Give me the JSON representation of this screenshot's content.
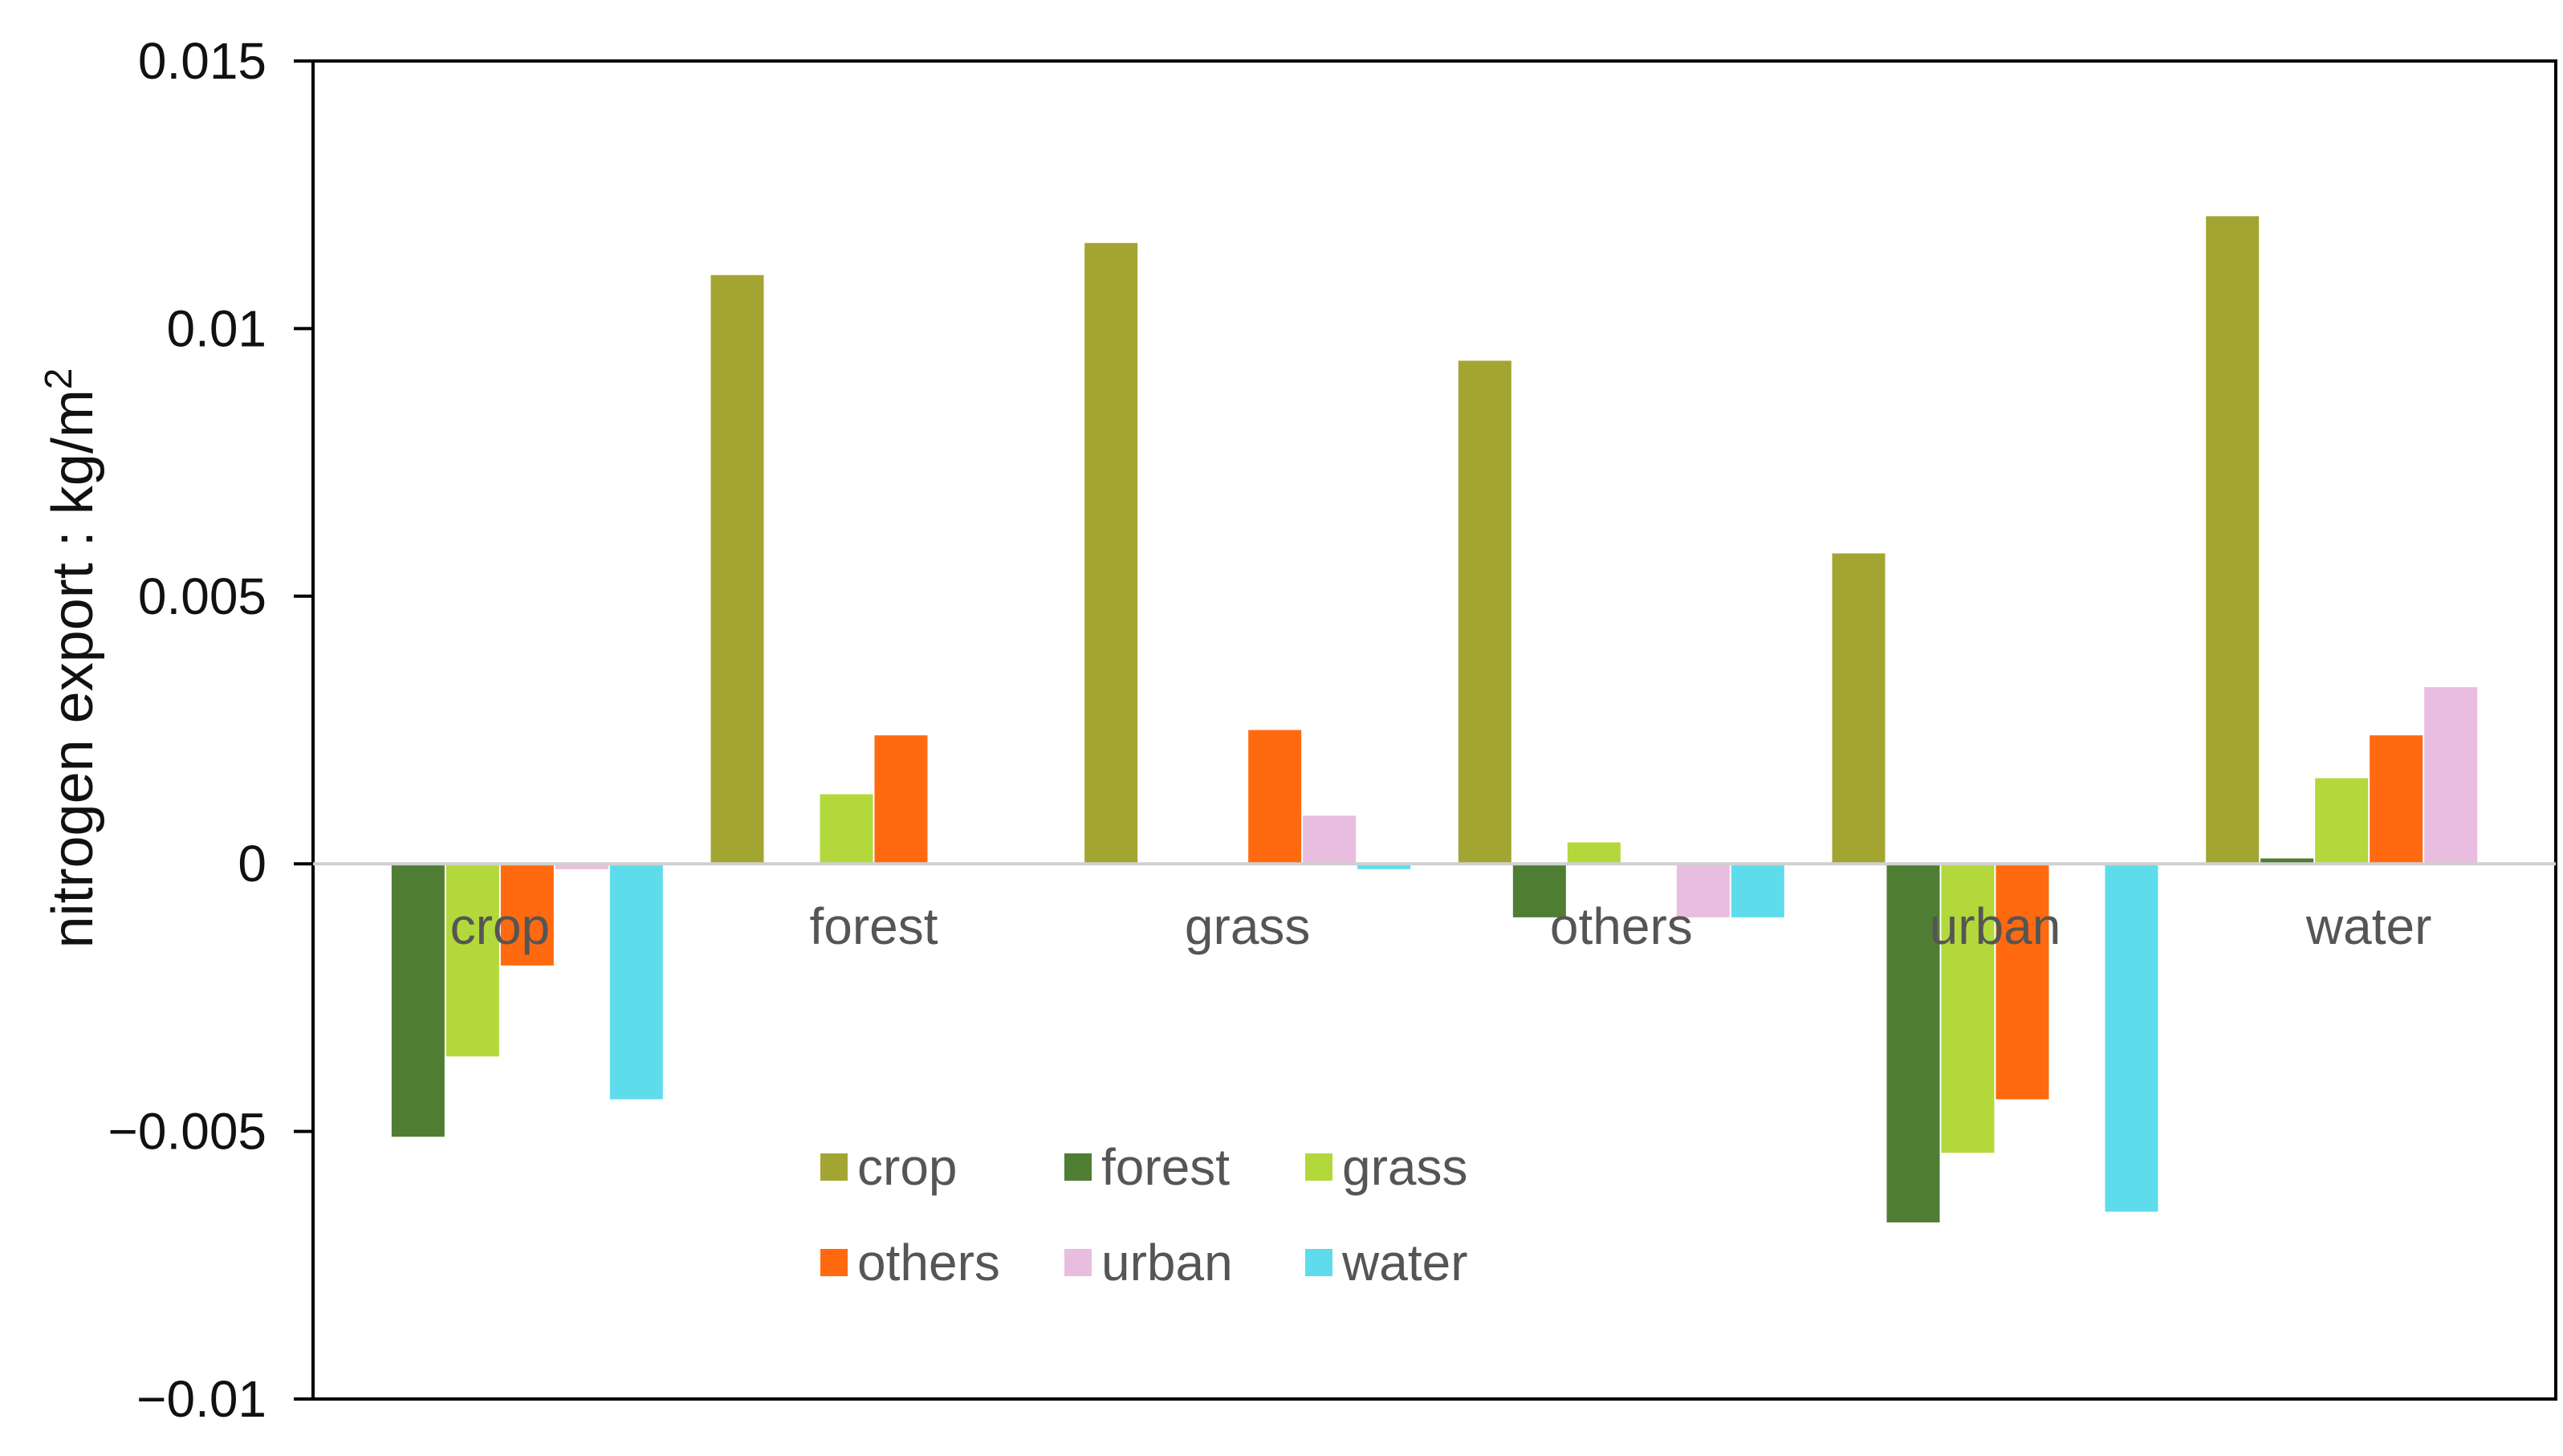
{
  "chart_data": {
    "type": "bar",
    "title": "",
    "xlabel": "",
    "ylabel": "nitrogen export : kg/m",
    "ylabel_superscript": "2",
    "ylim": [
      -0.01,
      0.015
    ],
    "yticks": [
      {
        "value": 0.015,
        "label": "0.015"
      },
      {
        "value": 0.01,
        "label": "0.01"
      },
      {
        "value": 0.005,
        "label": "0.005"
      },
      {
        "value": 0,
        "label": "0"
      },
      {
        "value": -0.005,
        "label": "−0.005"
      },
      {
        "value": -0.01,
        "label": "−0.01"
      }
    ],
    "categories": [
      "crop",
      "forest",
      "grass",
      "others",
      "urban",
      "water"
    ],
    "series": [
      {
        "name": "crop",
        "color": "#a3a532",
        "values": [
          0,
          0.011,
          0.0116,
          0.0094,
          0.0058,
          0.0121
        ]
      },
      {
        "name": "forest",
        "color": "#4f7d33",
        "values": [
          -0.0051,
          0,
          0,
          -0.001,
          -0.0067,
          0.0001
        ]
      },
      {
        "name": "grass",
        "color": "#b3d83b",
        "values": [
          -0.0036,
          0.0013,
          0,
          0.0004,
          -0.0054,
          0.0016
        ]
      },
      {
        "name": "others",
        "color": "#ff6a10",
        "values": [
          -0.0019,
          0.0024,
          0.0025,
          0,
          -0.0044,
          0.0024
        ]
      },
      {
        "name": "urban",
        "color": "#e9bde0",
        "values": [
          -0.0001,
          0,
          0.0009,
          -0.001,
          0,
          0.0033
        ]
      },
      {
        "name": "water",
        "color": "#5fdcec",
        "values": [
          -0.0044,
          0,
          -0.0001,
          -0.001,
          -0.0065,
          0
        ]
      }
    ],
    "legend": {
      "position": "bottom-center-inside",
      "columns": 3
    },
    "grid": false
  }
}
